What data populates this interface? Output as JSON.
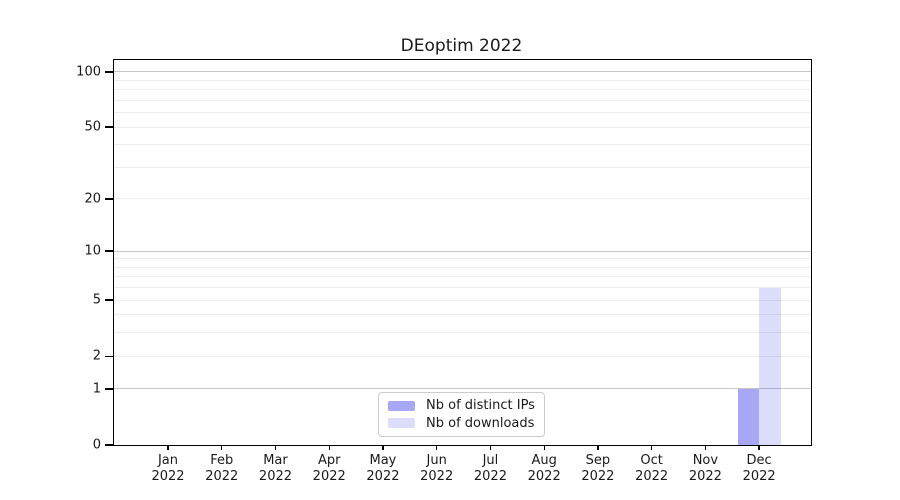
{
  "chart_data": {
    "type": "bar",
    "title": "DEoptim 2022",
    "categories": [
      "Jan 2022",
      "Feb 2022",
      "Mar 2022",
      "Apr 2022",
      "May 2022",
      "Jun 2022",
      "Jul 2022",
      "Aug 2022",
      "Sep 2022",
      "Oct 2022",
      "Nov 2022",
      "Dec 2022"
    ],
    "series": [
      {
        "name": "Nb of distinct IPs",
        "color": "rgba(80,80,235,0.5)",
        "solid_color": "#a8a8f4",
        "values": [
          0,
          0,
          0,
          0,
          0,
          0,
          0,
          0,
          0,
          0,
          0,
          1
        ]
      },
      {
        "name": "Nb of downloads",
        "color": "rgba(80,80,235,0.2)",
        "solid_color": "#dcdcf9",
        "values": [
          0,
          0,
          0,
          0,
          0,
          0,
          0,
          0,
          0,
          0,
          0,
          6
        ]
      }
    ],
    "xlabel": "",
    "ylabel": "",
    "yscale": "log1p",
    "ylim": [
      0,
      116
    ],
    "yticks": [
      0,
      1,
      2,
      5,
      10,
      20,
      50,
      100
    ],
    "grid": {
      "on": true,
      "major_values": [
        1,
        10,
        100
      ],
      "minor_values": [
        2,
        3,
        4,
        5,
        6,
        7,
        8,
        9,
        20,
        30,
        40,
        50,
        60,
        70,
        80,
        90
      ],
      "major_color": "#c6c6c6",
      "minor_color": "#ededed"
    },
    "legend_position": "lower center"
  }
}
